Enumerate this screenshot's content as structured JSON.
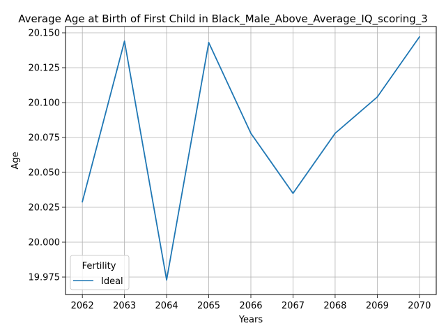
{
  "chart_data": {
    "type": "line",
    "title": "Average Age at Birth of First Child in Black_Male_Above_Average_IQ_scoring_3",
    "xlabel": "Years",
    "ylabel": "Age",
    "x": [
      2062,
      2063,
      2064,
      2065,
      2066,
      2067,
      2068,
      2069,
      2070
    ],
    "x_ticks": [
      "2062",
      "2063",
      "2064",
      "2065",
      "2066",
      "2067",
      "2068",
      "2069",
      "2070"
    ],
    "y_ticks": [
      "19.975",
      "20.000",
      "20.025",
      "20.050",
      "20.075",
      "20.100",
      "20.125",
      "20.150"
    ],
    "ylim": [
      19.9625,
      20.1545
    ],
    "grid": true,
    "legend": {
      "title": "Fertility",
      "placement": "lower-left"
    },
    "series": [
      {
        "name": "Ideal",
        "color": "#1f77b4",
        "values": [
          20.029,
          20.144,
          19.973,
          20.143,
          20.078,
          20.035,
          20.078,
          20.104,
          20.147
        ]
      }
    ]
  }
}
